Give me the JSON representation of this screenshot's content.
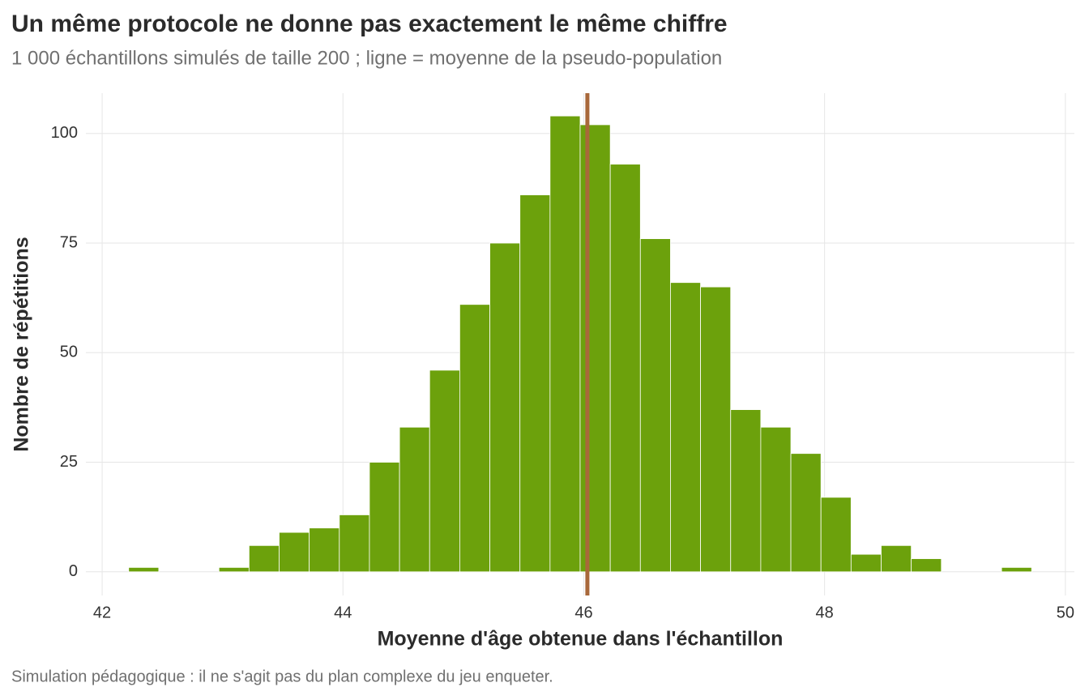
{
  "chart_data": {
    "type": "histogram",
    "title": "Un même protocole ne donne pas exactement le même chiffre",
    "subtitle": "1 000 échantillons simulés de taille 200 ; ligne = moyenne de la pseudo-population",
    "x_label": "Moyenne d'âge obtenue dans l'échantillon",
    "y_label": "Nombre de répétitions",
    "caption": "Simulation pédagogique : il ne s'agit pas du plan complexe du jeu enqueter.",
    "bins": [
      42.22,
      42.47,
      42.72,
      42.97,
      43.22,
      43.47,
      43.72,
      43.97,
      44.22,
      44.47,
      44.72,
      44.97,
      45.22,
      45.47,
      45.72,
      45.97,
      46.22,
      46.47,
      46.72,
      46.97,
      47.22,
      47.47,
      47.72,
      47.97,
      48.22,
      48.47,
      48.72,
      48.97,
      49.22,
      49.47,
      49.72
    ],
    "values": [
      1,
      0,
      0,
      1,
      6,
      9,
      10,
      13,
      25,
      33,
      46,
      61,
      75,
      86,
      104,
      102,
      93,
      76,
      66,
      65,
      37,
      33,
      27,
      17,
      4,
      6,
      3,
      0,
      0,
      1
    ],
    "color": "#6ca10c",
    "mean_line": {
      "value": 46.03,
      "color": "#a8683a"
    },
    "xlim": [
      41.865,
      50.075
    ],
    "xticks": [
      42,
      44,
      46,
      48,
      50
    ],
    "ylim": [
      -5.4,
      109.2
    ],
    "yticks": [
      0,
      25,
      50,
      75,
      100
    ],
    "grid": true
  }
}
